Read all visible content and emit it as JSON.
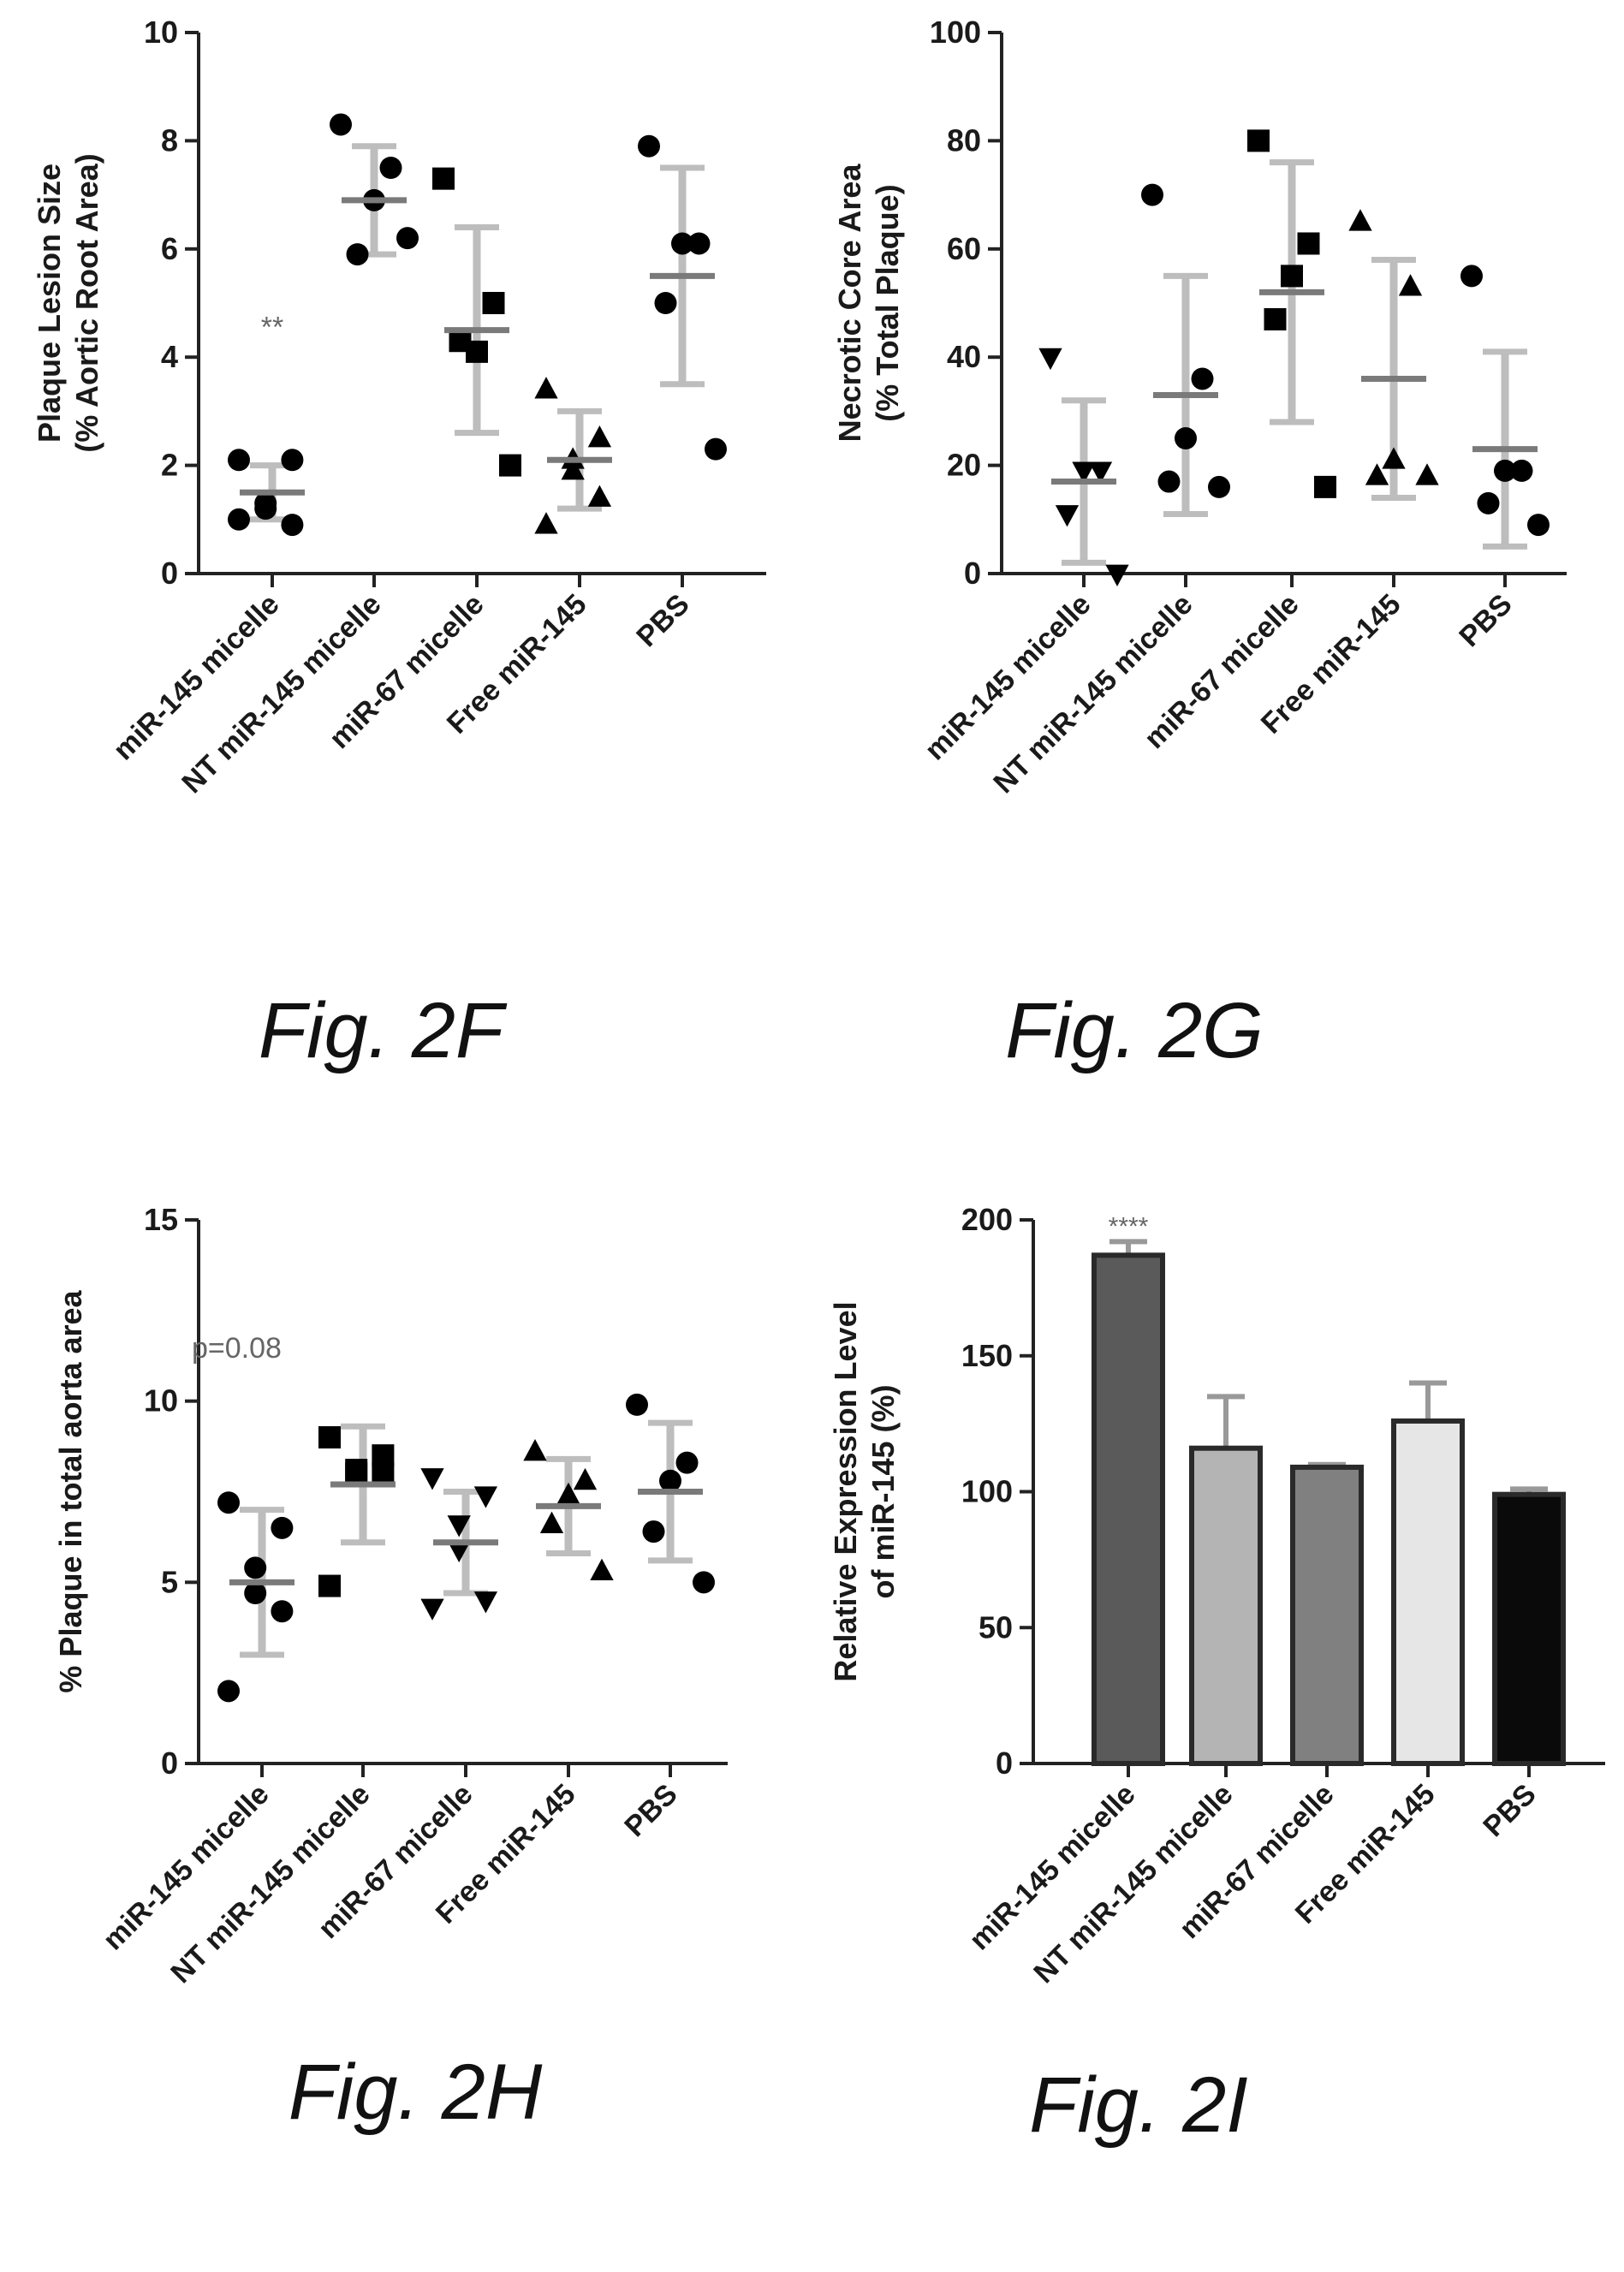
{
  "figures": [
    {
      "caption": "Fig. 2F"
    },
    {
      "caption": "Fig. 2G"
    },
    {
      "caption": "Fig. 2H"
    },
    {
      "caption": "Fig. 2I"
    }
  ],
  "chart_data": [
    {
      "id": "2F",
      "type": "scatter",
      "title": "",
      "ylabel_lines": [
        "Plaque Lesion Size",
        "(% Aortic Root Area)"
      ],
      "ylim": [
        0,
        10
      ],
      "yticks": [
        0,
        2,
        4,
        6,
        8,
        10
      ],
      "categories": [
        "miR-145 micelle",
        "NT miR-145 micelle",
        "miR-67 micelle",
        "Free miR-145",
        "PBS"
      ],
      "groups": [
        {
          "category": "miR-145 micelle",
          "marker": "circle",
          "points": [
            2.1,
            2.1,
            1.3,
            1.2,
            0.9,
            1.0
          ],
          "mean": 1.5,
          "sd": 0.5,
          "color": "#000000",
          "annotation": "**"
        },
        {
          "category": "NT miR-145 micelle",
          "marker": "circle",
          "points": [
            8.3,
            7.5,
            6.9,
            5.9,
            6.2
          ],
          "mean": 6.9,
          "sd": 1.0,
          "color": "#000000"
        },
        {
          "category": "miR-67 micelle",
          "marker": "square",
          "points": [
            7.3,
            5.0,
            4.1,
            4.3,
            2.0
          ],
          "mean": 4.5,
          "sd": 1.9,
          "color": "#000000"
        },
        {
          "category": "Free miR-145",
          "marker": "triangle",
          "points": [
            3.4,
            2.5,
            1.9,
            2.1,
            1.4,
            0.9
          ],
          "mean": 2.1,
          "sd": 0.9,
          "color": "#000000"
        },
        {
          "category": "PBS",
          "marker": "circle",
          "points": [
            7.9,
            6.1,
            6.1,
            5.0,
            2.3
          ],
          "mean": 5.5,
          "sd": 2.0,
          "color": "#000000"
        }
      ]
    },
    {
      "id": "2G",
      "type": "scatter",
      "title": "",
      "ylabel_lines": [
        "Necrotic Core Area",
        "(% Total Plaque)"
      ],
      "ylim": [
        0,
        100
      ],
      "yticks": [
        0,
        20,
        40,
        60,
        80,
        100
      ],
      "categories": [
        "miR-145 micelle",
        "NT miR-145 micelle",
        "miR-67 micelle",
        "Free miR-145",
        "PBS"
      ],
      "groups": [
        {
          "category": "miR-145 micelle",
          "marker": "triangle-down",
          "points": [
            40,
            19,
            19,
            11,
            0
          ],
          "mean": 17,
          "sd": 15,
          "color": "#000000"
        },
        {
          "category": "NT miR-145 micelle",
          "marker": "circle",
          "points": [
            70,
            36,
            25,
            17,
            16
          ],
          "mean": 33,
          "sd": 22,
          "color": "#000000"
        },
        {
          "category": "miR-67 micelle",
          "marker": "square",
          "points": [
            80,
            61,
            55,
            47,
            16
          ],
          "mean": 52,
          "sd": 24,
          "color": "#000000"
        },
        {
          "category": "Free miR-145",
          "marker": "triangle",
          "points": [
            65,
            53,
            21,
            18,
            18
          ],
          "mean": 36,
          "sd": 22,
          "color": "#000000"
        },
        {
          "category": "PBS",
          "marker": "circle",
          "points": [
            55,
            19,
            19,
            13,
            9
          ],
          "mean": 23,
          "sd": 18,
          "color": "#000000"
        }
      ]
    },
    {
      "id": "2H",
      "type": "scatter",
      "title": "",
      "ylabel": "% Plaque in total aorta area",
      "ylim": [
        0,
        15
      ],
      "yticks": [
        0,
        5,
        10,
        15
      ],
      "annotation": "p=0.08",
      "categories": [
        "miR-145 micelle",
        "NT miR-145 micelle",
        "miR-67 micelle",
        "Free miR-145",
        "PBS"
      ],
      "groups": [
        {
          "category": "miR-145 micelle",
          "marker": "circle",
          "points": [
            7.2,
            6.5,
            5.4,
            4.7,
            4.2,
            2.0
          ],
          "mean": 5.0,
          "sd": 2.0,
          "color": "#000000"
        },
        {
          "category": "NT miR-145 micelle",
          "marker": "square",
          "points": [
            9.0,
            8.5,
            8.1,
            8.0,
            8.0,
            4.9
          ],
          "mean": 7.7,
          "sd": 1.6,
          "color": "#000000"
        },
        {
          "category": "miR-67 micelle",
          "marker": "triangle-down",
          "points": [
            7.9,
            7.4,
            6.6,
            5.9,
            4.5,
            4.3
          ],
          "mean": 6.1,
          "sd": 1.4,
          "color": "#000000"
        },
        {
          "category": "Free miR-145",
          "marker": "triangle",
          "points": [
            8.6,
            7.8,
            7.4,
            6.6,
            5.3
          ],
          "mean": 7.1,
          "sd": 1.3,
          "color": "#000000"
        },
        {
          "category": "PBS",
          "marker": "circle",
          "points": [
            9.9,
            8.3,
            7.8,
            6.4,
            5.0
          ],
          "mean": 7.5,
          "sd": 1.9,
          "color": "#000000"
        }
      ]
    },
    {
      "id": "2I",
      "type": "bar",
      "title": "",
      "ylabel_lines": [
        "Relative Expression Level",
        "of miR-145 (%)"
      ],
      "ylim": [
        0,
        200
      ],
      "yticks": [
        0,
        50,
        100,
        150,
        200
      ],
      "categories": [
        "miR-145 micelle",
        "NT miR-145 micelle",
        "miR-67 micelle",
        "Free miR-145",
        "PBS"
      ],
      "values": [
        187,
        116,
        109,
        126,
        99
      ],
      "errors": [
        5,
        19,
        1,
        14,
        2
      ],
      "colors": [
        "#5a5a5a",
        "#b4b4b4",
        "#808080",
        "#e6e6e6",
        "#0a0a0a"
      ],
      "annotation": "****"
    }
  ]
}
